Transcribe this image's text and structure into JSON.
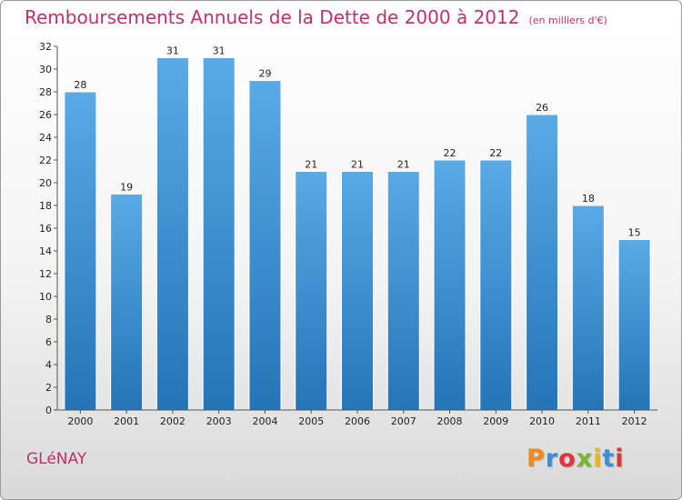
{
  "header": {
    "title": "Remboursements Annuels de la Dette de 2000 à 2012",
    "subtitle": "(en milliers d'€)"
  },
  "footer": {
    "commune": "GLéNAY",
    "logo_letters": [
      "P",
      "r",
      "o",
      "x",
      "i",
      "t",
      "i"
    ],
    "logo_colors": [
      "#f08a1c",
      "#3a8fd8",
      "#e0363a",
      "#7cb82f",
      "#f2b40f",
      "#3a8fd8",
      "#e0363a"
    ]
  },
  "colors": {
    "bar_light": "#5aaae6",
    "bar_dark": "#2574b6",
    "title": "#c0306a"
  },
  "chart_data": {
    "type": "bar",
    "title": "Remboursements Annuels de la Dette de 2000 à 2012",
    "subtitle": "(en milliers d'€)",
    "categories": [
      "2000",
      "2001",
      "2002",
      "2003",
      "2004",
      "2005",
      "2006",
      "2007",
      "2008",
      "2009",
      "2010",
      "2011",
      "2012"
    ],
    "values": [
      28,
      19,
      31,
      31,
      29,
      21,
      21,
      21,
      22,
      22,
      26,
      18,
      15
    ],
    "xlabel": "",
    "ylabel": "",
    "ylim": [
      0,
      32
    ],
    "yticks": [
      0,
      2,
      4,
      6,
      8,
      10,
      12,
      14,
      16,
      18,
      20,
      22,
      24,
      26,
      28,
      30,
      32
    ],
    "grid": false,
    "legend": "none"
  }
}
